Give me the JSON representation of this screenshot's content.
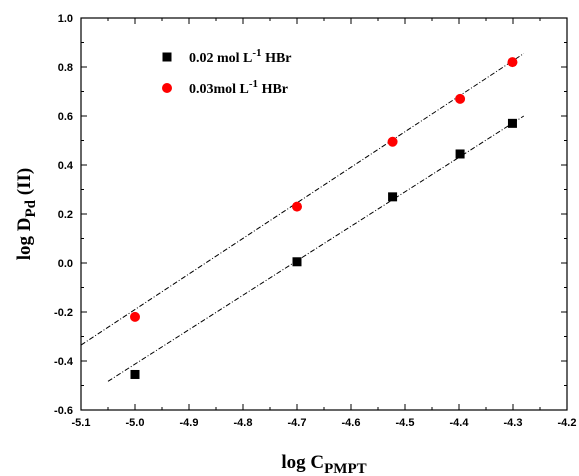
{
  "chart_data": {
    "type": "scatter",
    "xlabel": {
      "main": "log C",
      "sub": "PMPT"
    },
    "ylabel": {
      "main": "log D",
      "sub": "Pd",
      "suffix": " (II)"
    },
    "xlim": [
      -5.1,
      -4.2
    ],
    "ylim": [
      -0.6,
      1.0
    ],
    "x_ticks": [
      "-5.1",
      "-5.0",
      "-4.9",
      "-4.8",
      "-4.7",
      "-4.6",
      "-4.5",
      "-4.4",
      "-4.3",
      "-4.2"
    ],
    "y_ticks": [
      "-0.6",
      "-0.4",
      "-0.2",
      "0.0",
      "0.2",
      "0.4",
      "0.6",
      "0.8",
      "1.0"
    ],
    "legend_position": "top-left",
    "grid": false,
    "series": [
      {
        "name": "0.02 mol L-1 HBr",
        "legend": {
          "pre": "0.02 mol L",
          "sup": "-1",
          "post": " HBr"
        },
        "marker": "square",
        "color": "#000000",
        "x": [
          -5.0,
          -4.7,
          -4.523,
          -4.398,
          -4.301
        ],
        "y": [
          -0.455,
          0.005,
          0.27,
          0.445,
          0.57
        ],
        "fit": {
          "x": [
            -5.05,
            -4.28
          ],
          "y": [
            -0.483,
            0.6
          ]
        }
      },
      {
        "name": "0.03mol L-1 HBr",
        "legend": {
          "pre": "0.03mol L",
          "sup": "-1",
          "post": " HBr"
        },
        "marker": "circle",
        "color": "#ff0000",
        "x": [
          -5.0,
          -4.7,
          -4.523,
          -4.398,
          -4.301
        ],
        "y": [
          -0.22,
          0.23,
          0.495,
          0.67,
          0.82
        ],
        "fit": {
          "x": [
            -5.1,
            -4.28
          ],
          "y": [
            -0.335,
            0.855
          ]
        }
      }
    ]
  }
}
